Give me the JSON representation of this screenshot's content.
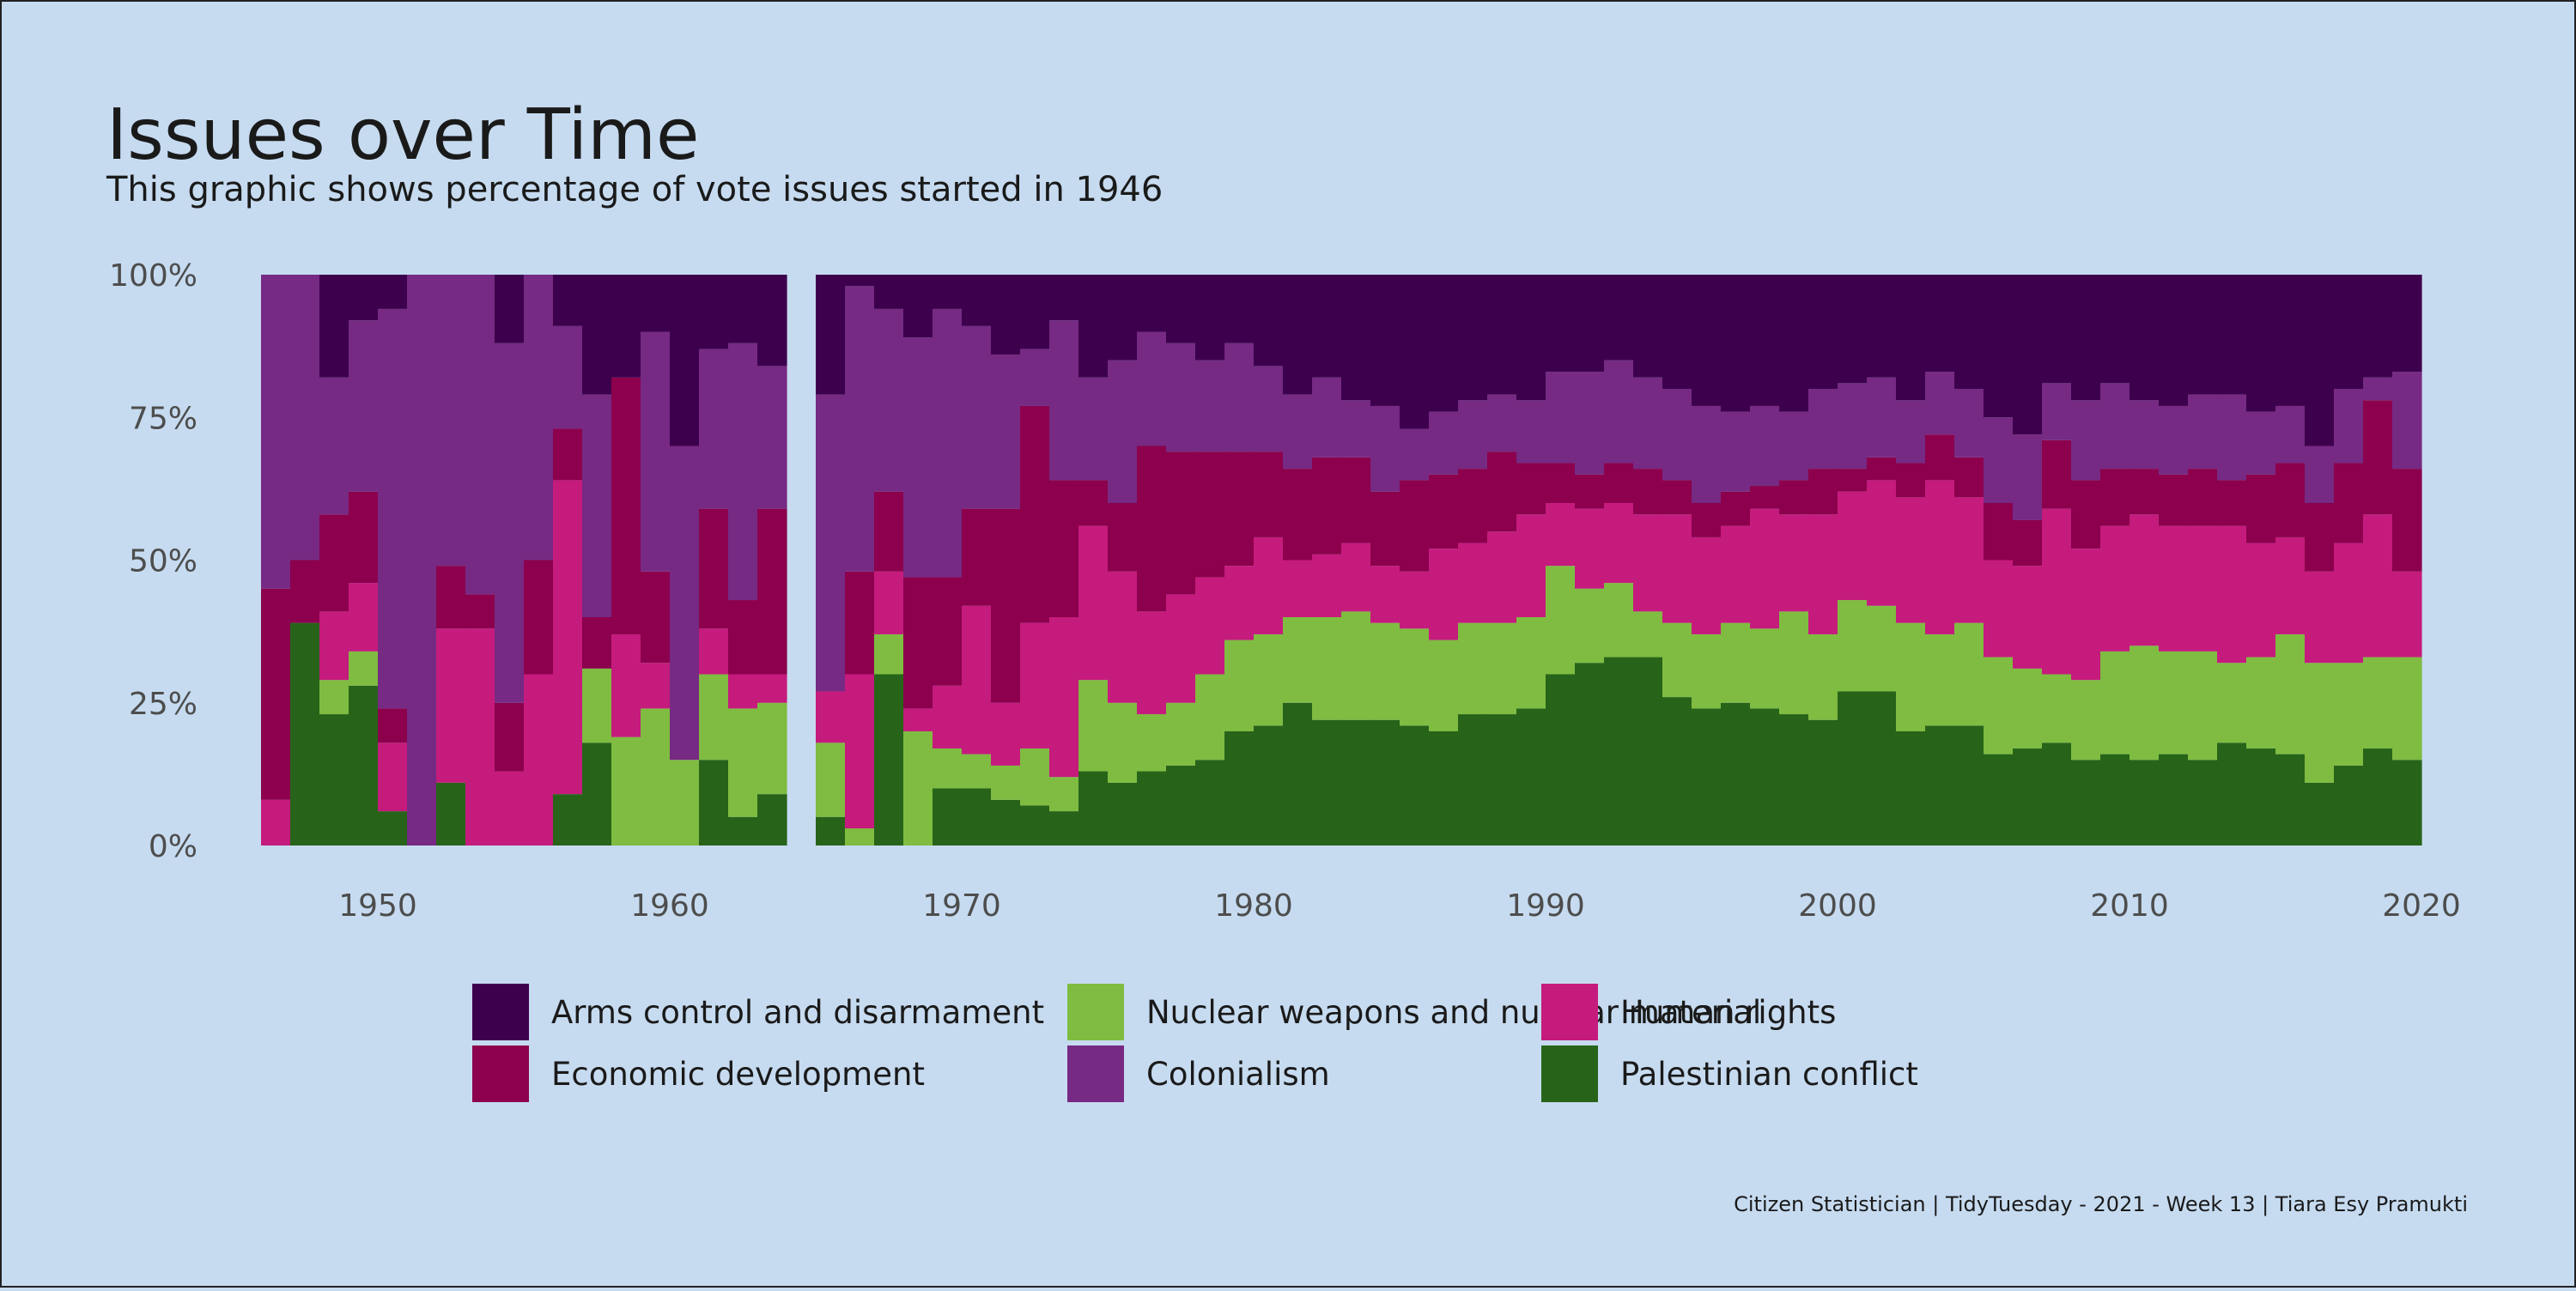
{
  "chart_data": {
    "type": "bar",
    "stacked": true,
    "normalized": true,
    "title": "Issues over Time",
    "subtitle": "This graphic shows percentage of vote issues started in 1946",
    "caption": "Citizen Statistician | TidyTuesday - 2021 - Week 13 | Tiara Esy Pramukti",
    "x_ticks": [
      "1950",
      "1960",
      "1970",
      "1980",
      "1990",
      "2000",
      "2010",
      "2020"
    ],
    "xlim": [
      1946,
      2019
    ],
    "y_ticks": [
      "0%",
      "25%",
      "50%",
      "75%",
      "100%"
    ],
    "ylim": [
      0,
      100
    ],
    "missing_year": 1964,
    "grid": false,
    "legend_position": "bottom",
    "series_order_bottom_to_top": [
      "Palestinian conflict",
      "Nuclear weapons and nuclear material",
      "Human rights",
      "Economic development",
      "Colonialism",
      "Arms control and disarmament"
    ],
    "series": [
      {
        "name": "Arms control and disarmament",
        "color": "#3d004d",
        "key": "arms"
      },
      {
        "name": "Economic development",
        "color": "#8c004d",
        "key": "econ"
      },
      {
        "name": "Nuclear weapons and nuclear material",
        "color": "#7fbc41",
        "key": "nuclear"
      },
      {
        "name": "Colonialism",
        "color": "#762a83",
        "key": "colon"
      },
      {
        "name": "Human rights",
        "color": "#c51b7d",
        "key": "human"
      },
      {
        "name": "Palestinian conflict",
        "color": "#276419",
        "key": "pal"
      }
    ],
    "years": [
      {
        "year": 1946,
        "pal": 0,
        "nuclear": 0,
        "human": 8,
        "econ": 37,
        "colon": 55,
        "arms": 0
      },
      {
        "year": 1947,
        "pal": 39,
        "nuclear": 0,
        "human": 0,
        "econ": 11,
        "colon": 50,
        "arms": 0
      },
      {
        "year": 1948,
        "pal": 23,
        "nuclear": 6,
        "human": 12,
        "econ": 17,
        "colon": 24,
        "arms": 18
      },
      {
        "year": 1949,
        "pal": 28,
        "nuclear": 6,
        "human": 12,
        "econ": 16,
        "colon": 30,
        "arms": 8
      },
      {
        "year": 1950,
        "pal": 6,
        "nuclear": 0,
        "human": 12,
        "econ": 6,
        "colon": 70,
        "arms": 6
      },
      {
        "year": 1951,
        "pal": 0,
        "nuclear": 0,
        "human": 0,
        "econ": 0,
        "colon": 100,
        "arms": 0
      },
      {
        "year": 1952,
        "pal": 11,
        "nuclear": 0,
        "human": 27,
        "econ": 11,
        "colon": 51,
        "arms": 0
      },
      {
        "year": 1953,
        "pal": 0,
        "nuclear": 0,
        "human": 38,
        "econ": 6,
        "colon": 56,
        "arms": 0
      },
      {
        "year": 1954,
        "pal": 0,
        "nuclear": 0,
        "human": 13,
        "econ": 12,
        "colon": 63,
        "arms": 12
      },
      {
        "year": 1955,
        "pal": 0,
        "nuclear": 0,
        "human": 30,
        "econ": 20,
        "colon": 50,
        "arms": 0
      },
      {
        "year": 1956,
        "pal": 9,
        "nuclear": 0,
        "human": 55,
        "econ": 9,
        "colon": 18,
        "arms": 9
      },
      {
        "year": 1957,
        "pal": 18,
        "nuclear": 13,
        "human": 0,
        "econ": 9,
        "colon": 39,
        "arms": 21
      },
      {
        "year": 1958,
        "pal": 0,
        "nuclear": 19,
        "human": 18,
        "econ": 45,
        "colon": 0,
        "arms": 18
      },
      {
        "year": 1959,
        "pal": 0,
        "nuclear": 24,
        "human": 8,
        "econ": 16,
        "colon": 42,
        "arms": 10
      },
      {
        "year": 1960,
        "pal": 0,
        "nuclear": 15,
        "human": 0,
        "econ": 0,
        "colon": 55,
        "arms": 30
      },
      {
        "year": 1961,
        "pal": 15,
        "nuclear": 15,
        "human": 8,
        "econ": 21,
        "colon": 28,
        "arms": 13
      },
      {
        "year": 1962,
        "pal": 5,
        "nuclear": 19,
        "human": 6,
        "econ": 13,
        "colon": 45,
        "arms": 12
      },
      {
        "year": 1963,
        "pal": 9,
        "nuclear": 16,
        "human": 5,
        "econ": 29,
        "colon": 25,
        "arms": 16
      },
      {
        "year": 1965,
        "pal": 5,
        "nuclear": 13,
        "human": 9,
        "econ": 0,
        "colon": 52,
        "arms": 21
      },
      {
        "year": 1966,
        "pal": 0,
        "nuclear": 3,
        "human": 27,
        "econ": 18,
        "colon": 50,
        "arms": 2
      },
      {
        "year": 1967,
        "pal": 30,
        "nuclear": 7,
        "human": 11,
        "econ": 14,
        "colon": 32,
        "arms": 6
      },
      {
        "year": 1968,
        "pal": 0,
        "nuclear": 20,
        "human": 4,
        "econ": 23,
        "colon": 42,
        "arms": 11
      },
      {
        "year": 1969,
        "pal": 10,
        "nuclear": 7,
        "human": 11,
        "econ": 19,
        "colon": 47,
        "arms": 6
      },
      {
        "year": 1970,
        "pal": 10,
        "nuclear": 6,
        "human": 26,
        "econ": 17,
        "colon": 32,
        "arms": 9
      },
      {
        "year": 1971,
        "pal": 8,
        "nuclear": 6,
        "human": 11,
        "econ": 34,
        "colon": 27,
        "arms": 14
      },
      {
        "year": 1972,
        "pal": 7,
        "nuclear": 10,
        "human": 22,
        "econ": 38,
        "colon": 10,
        "arms": 13
      },
      {
        "year": 1973,
        "pal": 6,
        "nuclear": 6,
        "human": 28,
        "econ": 24,
        "colon": 28,
        "arms": 8
      },
      {
        "year": 1974,
        "pal": 13,
        "nuclear": 16,
        "human": 27,
        "econ": 8,
        "colon": 18,
        "arms": 18
      },
      {
        "year": 1975,
        "pal": 11,
        "nuclear": 14,
        "human": 23,
        "econ": 12,
        "colon": 25,
        "arms": 15
      },
      {
        "year": 1976,
        "pal": 13,
        "nuclear": 10,
        "human": 18,
        "econ": 29,
        "colon": 20,
        "arms": 10
      },
      {
        "year": 1977,
        "pal": 14,
        "nuclear": 11,
        "human": 19,
        "econ": 25,
        "colon": 19,
        "arms": 12
      },
      {
        "year": 1978,
        "pal": 15,
        "nuclear": 15,
        "human": 17,
        "econ": 22,
        "colon": 16,
        "arms": 15
      },
      {
        "year": 1979,
        "pal": 20,
        "nuclear": 16,
        "human": 13,
        "econ": 20,
        "colon": 19,
        "arms": 12
      },
      {
        "year": 1980,
        "pal": 21,
        "nuclear": 16,
        "human": 17,
        "econ": 15,
        "colon": 15,
        "arms": 16
      },
      {
        "year": 1981,
        "pal": 25,
        "nuclear": 15,
        "human": 10,
        "econ": 16,
        "colon": 13,
        "arms": 21
      },
      {
        "year": 1982,
        "pal": 22,
        "nuclear": 18,
        "human": 11,
        "econ": 17,
        "colon": 14,
        "arms": 18
      },
      {
        "year": 1983,
        "pal": 22,
        "nuclear": 19,
        "human": 12,
        "econ": 15,
        "colon": 10,
        "arms": 22
      },
      {
        "year": 1984,
        "pal": 22,
        "nuclear": 17,
        "human": 10,
        "econ": 13,
        "colon": 15,
        "arms": 23
      },
      {
        "year": 1985,
        "pal": 21,
        "nuclear": 17,
        "human": 10,
        "econ": 16,
        "colon": 9,
        "arms": 27
      },
      {
        "year": 1986,
        "pal": 20,
        "nuclear": 16,
        "human": 16,
        "econ": 13,
        "colon": 11,
        "arms": 24
      },
      {
        "year": 1987,
        "pal": 23,
        "nuclear": 16,
        "human": 14,
        "econ": 13,
        "colon": 12,
        "arms": 22
      },
      {
        "year": 1988,
        "pal": 23,
        "nuclear": 16,
        "human": 16,
        "econ": 14,
        "colon": 10,
        "arms": 21
      },
      {
        "year": 1989,
        "pal": 24,
        "nuclear": 16,
        "human": 18,
        "econ": 9,
        "colon": 11,
        "arms": 22
      },
      {
        "year": 1990,
        "pal": 30,
        "nuclear": 19,
        "human": 11,
        "econ": 7,
        "colon": 16,
        "arms": 17
      },
      {
        "year": 1991,
        "pal": 32,
        "nuclear": 13,
        "human": 14,
        "econ": 6,
        "colon": 18,
        "arms": 17
      },
      {
        "year": 1992,
        "pal": 33,
        "nuclear": 13,
        "human": 14,
        "econ": 7,
        "colon": 18,
        "arms": 15
      },
      {
        "year": 1993,
        "pal": 33,
        "nuclear": 8,
        "human": 17,
        "econ": 8,
        "colon": 16,
        "arms": 18
      },
      {
        "year": 1994,
        "pal": 26,
        "nuclear": 13,
        "human": 19,
        "econ": 6,
        "colon": 16,
        "arms": 20
      },
      {
        "year": 1995,
        "pal": 24,
        "nuclear": 13,
        "human": 17,
        "econ": 6,
        "colon": 17,
        "arms": 23
      },
      {
        "year": 1996,
        "pal": 25,
        "nuclear": 14,
        "human": 17,
        "econ": 6,
        "colon": 14,
        "arms": 24
      },
      {
        "year": 1997,
        "pal": 24,
        "nuclear": 14,
        "human": 21,
        "econ": 4,
        "colon": 14,
        "arms": 23
      },
      {
        "year": 1998,
        "pal": 23,
        "nuclear": 18,
        "human": 17,
        "econ": 6,
        "colon": 12,
        "arms": 24
      },
      {
        "year": 1999,
        "pal": 22,
        "nuclear": 15,
        "human": 21,
        "econ": 8,
        "colon": 14,
        "arms": 20
      },
      {
        "year": 2000,
        "pal": 27,
        "nuclear": 16,
        "human": 19,
        "econ": 4,
        "colon": 15,
        "arms": 19
      },
      {
        "year": 2001,
        "pal": 27,
        "nuclear": 15,
        "human": 22,
        "econ": 4,
        "colon": 14,
        "arms": 18
      },
      {
        "year": 2002,
        "pal": 20,
        "nuclear": 19,
        "human": 22,
        "econ": 6,
        "colon": 11,
        "arms": 22
      },
      {
        "year": 2003,
        "pal": 21,
        "nuclear": 16,
        "human": 27,
        "econ": 8,
        "colon": 11,
        "arms": 17
      },
      {
        "year": 2004,
        "pal": 21,
        "nuclear": 18,
        "human": 22,
        "econ": 7,
        "colon": 12,
        "arms": 20
      },
      {
        "year": 2005,
        "pal": 16,
        "nuclear": 17,
        "human": 17,
        "econ": 10,
        "colon": 15,
        "arms": 25
      },
      {
        "year": 2006,
        "pal": 17,
        "nuclear": 14,
        "human": 18,
        "econ": 8,
        "colon": 15,
        "arms": 28
      },
      {
        "year": 2007,
        "pal": 18,
        "nuclear": 12,
        "human": 29,
        "econ": 12,
        "colon": 10,
        "arms": 19
      },
      {
        "year": 2008,
        "pal": 15,
        "nuclear": 14,
        "human": 23,
        "econ": 12,
        "colon": 14,
        "arms": 22
      },
      {
        "year": 2009,
        "pal": 16,
        "nuclear": 18,
        "human": 22,
        "econ": 10,
        "colon": 15,
        "arms": 19
      },
      {
        "year": 2010,
        "pal": 15,
        "nuclear": 20,
        "human": 23,
        "econ": 8,
        "colon": 12,
        "arms": 22
      },
      {
        "year": 2011,
        "pal": 16,
        "nuclear": 18,
        "human": 22,
        "econ": 9,
        "colon": 12,
        "arms": 23
      },
      {
        "year": 2012,
        "pal": 15,
        "nuclear": 19,
        "human": 22,
        "econ": 10,
        "colon": 13,
        "arms": 21
      },
      {
        "year": 2013,
        "pal": 18,
        "nuclear": 14,
        "human": 24,
        "econ": 8,
        "colon": 15,
        "arms": 21
      },
      {
        "year": 2014,
        "pal": 17,
        "nuclear": 16,
        "human": 20,
        "econ": 12,
        "colon": 11,
        "arms": 24
      },
      {
        "year": 2015,
        "pal": 16,
        "nuclear": 21,
        "human": 17,
        "econ": 13,
        "colon": 10,
        "arms": 23
      },
      {
        "year": 2016,
        "pal": 11,
        "nuclear": 21,
        "human": 16,
        "econ": 12,
        "colon": 10,
        "arms": 30
      },
      {
        "year": 2017,
        "pal": 14,
        "nuclear": 18,
        "human": 21,
        "econ": 14,
        "colon": 13,
        "arms": 20
      },
      {
        "year": 2018,
        "pal": 17,
        "nuclear": 16,
        "human": 25,
        "econ": 20,
        "colon": 4,
        "arms": 18
      },
      {
        "year": 2019,
        "pal": 15,
        "nuclear": 18,
        "human": 15,
        "econ": 18,
        "colon": 17,
        "arms": 17
      }
    ]
  }
}
